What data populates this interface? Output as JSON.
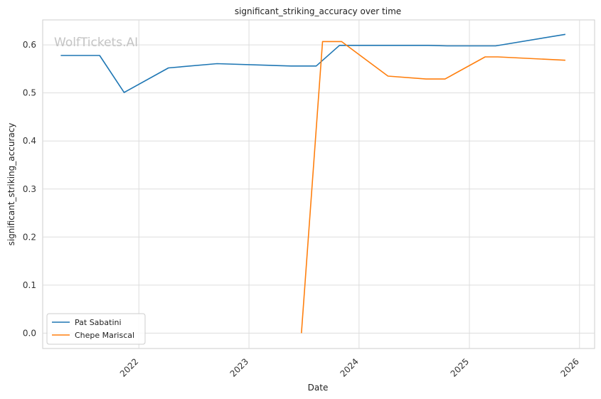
{
  "chart_data": {
    "type": "line",
    "title": "significant_striking_accuracy over time",
    "xlabel": "Date",
    "ylabel": "significant_striking_accuracy",
    "watermark": "WolfTickets.AI",
    "x_ticks": [
      "2022",
      "2023",
      "2024",
      "2025",
      "2026"
    ],
    "y_ticks": [
      "0.0",
      "0.1",
      "0.2",
      "0.3",
      "0.4",
      "0.5",
      "0.6"
    ],
    "xlim": [
      "2021-02-16",
      "2026-02-20"
    ],
    "ylim": [
      -0.032,
      0.652
    ],
    "grid": true,
    "legend_position": "lower-left",
    "series": [
      {
        "name": "Pat Sabatini",
        "color": "#1f77b4",
        "points": [
          {
            "x": "2021-04-17",
            "y": 0.578
          },
          {
            "x": "2021-08-24",
            "y": 0.578
          },
          {
            "x": "2021-11-13",
            "y": 0.501
          },
          {
            "x": "2022-04-09",
            "y": 0.552
          },
          {
            "x": "2022-09-17",
            "y": 0.561
          },
          {
            "x": "2023-05-20",
            "y": 0.556
          },
          {
            "x": "2023-08-12",
            "y": 0.556
          },
          {
            "x": "2023-10-28",
            "y": 0.599
          },
          {
            "x": "2024-08-17",
            "y": 0.599
          },
          {
            "x": "2024-10-19",
            "y": 0.598
          },
          {
            "x": "2025-03-29",
            "y": 0.598
          },
          {
            "x": "2025-11-15",
            "y": 0.622
          }
        ]
      },
      {
        "name": "Chepe Mariscal",
        "color": "#ff7f0e",
        "points": [
          {
            "x": "2023-06-24",
            "y": 0.0
          },
          {
            "x": "2023-09-02",
            "y": 0.607
          },
          {
            "x": "2023-11-04",
            "y": 0.607
          },
          {
            "x": "2024-04-06",
            "y": 0.535
          },
          {
            "x": "2024-08-10",
            "y": 0.529
          },
          {
            "x": "2024-10-12",
            "y": 0.529
          },
          {
            "x": "2025-02-22",
            "y": 0.575
          },
          {
            "x": "2025-04-05",
            "y": 0.575
          },
          {
            "x": "2025-11-15",
            "y": 0.568
          }
        ]
      }
    ]
  }
}
